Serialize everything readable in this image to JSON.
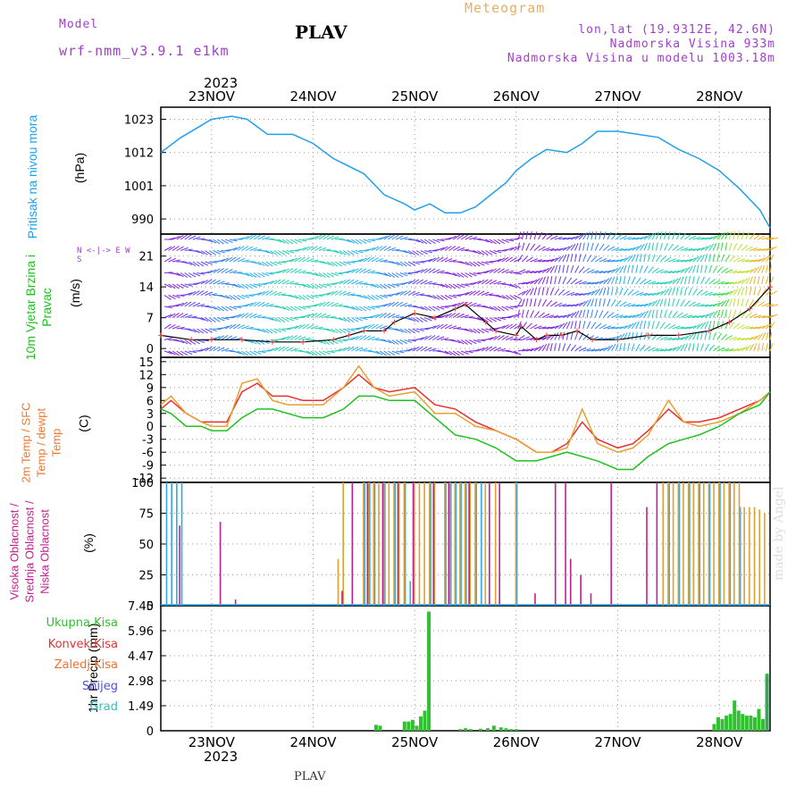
{
  "header": {
    "model_label": "Model",
    "model_name": "wrf-nmm_v3.9.1 e1km",
    "station": "PLAV",
    "meteogram": "Meteogram",
    "lonlat": "lon,lat (19.9312E, 42.6N)",
    "elevation": "Nadmorska Visina 933m",
    "model_elevation": "Nadmorska Visina u modelu 1003.18m"
  },
  "footer": {
    "station": "PLAV",
    "credit": "made by Angel"
  },
  "colors": {
    "pressure": "#22a0e8",
    "temp2m": "#e83030",
    "sfc": "#e8a030",
    "dew": "#20c020",
    "high": "#30a8e8",
    "mid": "#e0a030",
    "low": "#c02090",
    "precip": "#30c030"
  },
  "chart_data": [
    {
      "type": "line",
      "panel": "pressure",
      "x_ticks": [
        "23NOV",
        "24NOV",
        "25NOV",
        "26NOV",
        "27NOV",
        "28NOV"
      ],
      "year": "2023",
      "ylabel": "Pritisak na nivou mora",
      "unit": "(hPa)",
      "y_ticks": [
        990,
        1001,
        1012,
        1023
      ],
      "ylim": [
        985,
        1027
      ],
      "x": [
        -0.5,
        -0.3,
        -0.1,
        0.0,
        0.2,
        0.35,
        0.55,
        0.8,
        1.0,
        1.2,
        1.5,
        1.7,
        1.9,
        2.0,
        2.15,
        2.3,
        2.45,
        2.6,
        2.75,
        2.9,
        3.0,
        3.15,
        3.3,
        3.5,
        3.65,
        3.8,
        4.0,
        4.2,
        4.4,
        4.6,
        4.8,
        5.0,
        5.2,
        5.4,
        5.5
      ],
      "series": [
        {
          "values": [
            1012,
            1017,
            1021,
            1023,
            1024,
            1023,
            1018,
            1018,
            1015,
            1010,
            1005,
            998,
            995,
            993,
            995,
            992,
            992,
            994,
            998,
            1002,
            1006,
            1010,
            1013,
            1012,
            1015,
            1019,
            1019,
            1018,
            1017,
            1013,
            1010,
            1006,
            1000,
            993,
            987
          ]
        }
      ]
    },
    {
      "type": "line",
      "panel": "wind",
      "ylabel": "10m Vjetar Brzina i Pravac",
      "unit": "(m/s)",
      "compass": "N <-|-> E W S",
      "y_ticks": [
        0,
        7,
        14,
        21
      ],
      "ylim": [
        -2,
        26
      ],
      "x": [
        -0.5,
        -0.2,
        0.0,
        0.3,
        0.6,
        0.9,
        1.2,
        1.35,
        1.5,
        1.7,
        1.8,
        2.0,
        2.2,
        2.4,
        2.5,
        2.7,
        2.8,
        3.0,
        3.05,
        3.2,
        3.3,
        3.45,
        3.6,
        3.75,
        4.0,
        4.3,
        4.6,
        4.9,
        5.1,
        5.3,
        5.5
      ],
      "series": [
        {
          "name": "speed",
          "values": [
            3,
            2,
            2,
            2,
            1.5,
            1.5,
            2,
            3,
            4,
            4,
            6,
            8,
            7,
            9,
            10,
            6,
            4,
            3,
            5,
            2,
            3,
            3,
            4,
            2,
            2,
            3,
            3,
            4,
            6,
            9,
            14
          ]
        }
      ]
    },
    {
      "type": "line",
      "panel": "temperature",
      "ylabel": "2m Temp / SFC Temp / dewpt Temp",
      "unit": "(C)",
      "y_ticks": [
        -12,
        -9,
        -6,
        -3,
        0,
        3,
        6,
        9,
        12,
        15
      ],
      "ylim": [
        -13,
        16
      ],
      "x": [
        -0.5,
        -0.4,
        -0.25,
        -0.1,
        0.0,
        0.15,
        0.3,
        0.45,
        0.6,
        0.75,
        0.9,
        1.1,
        1.3,
        1.45,
        1.6,
        1.75,
        2.0,
        2.2,
        2.4,
        2.6,
        2.8,
        3.0,
        3.2,
        3.35,
        3.5,
        3.65,
        3.8,
        4.0,
        4.15,
        4.3,
        4.5,
        4.65,
        4.8,
        5.0,
        5.2,
        5.4,
        5.5
      ],
      "series": [
        {
          "name": "2m Temp",
          "values": [
            4,
            6,
            3,
            1,
            1,
            1,
            8,
            10,
            7,
            7,
            6,
            6,
            9,
            12,
            9,
            8,
            9,
            5,
            4,
            1,
            -1,
            -3,
            -6,
            -6,
            -4,
            1,
            -3,
            -5,
            -4,
            -1,
            4,
            1,
            1,
            2,
            4,
            6,
            8
          ]
        },
        {
          "name": "SFC Temp",
          "values": [
            5,
            7,
            3,
            1,
            0,
            0,
            10,
            11,
            6,
            5,
            5,
            5,
            9,
            14,
            9,
            7,
            8,
            3,
            3,
            0,
            -1,
            -3,
            -6,
            -6,
            -5,
            4,
            -4,
            -6,
            -5,
            -2,
            6,
            1,
            0,
            1,
            3,
            6,
            8
          ]
        },
        {
          "name": "dewpt Temp",
          "values": [
            4,
            3,
            0,
            0,
            -1,
            -1,
            2,
            4,
            4,
            3,
            2,
            2,
            4,
            7,
            7,
            6,
            6,
            2,
            -2,
            -3,
            -5,
            -8,
            -8,
            -7,
            -6,
            -7,
            -8,
            -10,
            -10,
            -7,
            -4,
            -3,
            -2,
            0,
            3,
            5,
            8
          ]
        }
      ]
    },
    {
      "type": "bar",
      "panel": "clouds",
      "ylabel": "Visoka Oblacnost / Srednja Oblacnost / Niska Oblacnost",
      "unit": "(%)",
      "y_ticks": [
        0,
        25,
        50,
        75,
        100
      ],
      "ylim": [
        0,
        100
      ],
      "series": [
        {
          "name": "Visoka Oblacnost",
          "x": [
            -0.45,
            -0.4,
            -0.35,
            -0.3,
            1.5,
            1.55,
            1.6,
            1.7,
            1.8,
            1.9,
            1.95,
            2.15,
            2.3,
            2.35,
            2.4,
            2.45,
            2.5,
            2.6,
            2.65,
            3.0,
            4.5,
            4.6,
            4.7,
            4.8,
            4.9,
            5.0,
            5.1,
            5.2
          ],
          "values": [
            100,
            100,
            100,
            100,
            100,
            100,
            100,
            100,
            100,
            100,
            20,
            100,
            100,
            100,
            100,
            100,
            100,
            100,
            100,
            100,
            100,
            100,
            100,
            100,
            100,
            100,
            100,
            80
          ]
        },
        {
          "name": "Srednja Oblacnost",
          "x": [
            1.25,
            1.3,
            1.5,
            1.55,
            1.6,
            1.65,
            1.7,
            1.75,
            1.8,
            1.85,
            1.9,
            2.0,
            2.05,
            2.1,
            2.15,
            2.2,
            2.3,
            2.35,
            2.4,
            2.45,
            2.5,
            2.55,
            2.6,
            2.7,
            2.8,
            3.0,
            4.45,
            4.5,
            4.55,
            4.6,
            4.65,
            4.7,
            4.75,
            4.8,
            4.85,
            4.9,
            4.95,
            5.0,
            5.05,
            5.1,
            5.15,
            5.2,
            5.25,
            5.3,
            5.35,
            5.4,
            5.45
          ],
          "values": [
            38,
            100,
            100,
            100,
            100,
            100,
            100,
            100,
            100,
            100,
            100,
            100,
            100,
            100,
            100,
            100,
            100,
            100,
            100,
            100,
            100,
            100,
            100,
            100,
            100,
            100,
            100,
            100,
            100,
            100,
            100,
            100,
            100,
            100,
            100,
            100,
            100,
            100,
            100,
            100,
            100,
            100,
            80,
            80,
            80,
            78,
            75
          ]
        },
        {
          "name": "Niska Oblacnost",
          "x": [
            -0.3,
            0.1,
            0.25,
            1.3,
            1.4,
            1.55,
            1.7,
            1.85,
            2.0,
            2.2,
            2.35,
            2.55,
            2.75,
            2.85,
            3.2,
            3.4,
            3.5,
            3.55,
            3.65,
            3.75,
            3.95,
            4.3,
            4.4
          ],
          "values": [
            65,
            68,
            5,
            12,
            100,
            100,
            100,
            100,
            100,
            100,
            100,
            100,
            100,
            100,
            10,
            100,
            100,
            38,
            25,
            10,
            100,
            80,
            100
          ]
        }
      ]
    },
    {
      "type": "bar",
      "panel": "precip",
      "ylabel": "1hr Precip",
      "unit": "(mm)",
      "y_ticks": [
        0,
        1.49,
        2.98,
        4.47,
        5.96,
        7.45
      ],
      "ylim": [
        0,
        7.45
      ],
      "legend": [
        "Ukupna Kisa",
        "Konvek.Kisa",
        "Zaledj.Kisa",
        "Snijeg",
        "Grad"
      ],
      "x_ticks": [
        "23NOV",
        "24NOV",
        "25NOV",
        "26NOV",
        "27NOV",
        "28NOV"
      ],
      "year": "2023",
      "series": [
        {
          "name": "Ukupna Kisa",
          "x": [
            1.62,
            1.66,
            1.9,
            1.94,
            1.98,
            2.02,
            2.06,
            2.1,
            2.14,
            2.45,
            2.5,
            2.55,
            2.65,
            2.72,
            2.78,
            2.85,
            2.9,
            2.95,
            3.0,
            4.95,
            4.99,
            5.03,
            5.07,
            5.11,
            5.15,
            5.19,
            5.23,
            5.27,
            5.31,
            5.35,
            5.39,
            5.43,
            5.47
          ],
          "values": [
            0.35,
            0.3,
            0.55,
            0.55,
            0.65,
            0.3,
            0.85,
            1.2,
            7.1,
            0.1,
            0.15,
            0.1,
            0.12,
            0.15,
            0.3,
            0.2,
            0.15,
            0.1,
            0.1,
            0.4,
            0.8,
            0.7,
            0.9,
            1.0,
            1.8,
            1.2,
            1.0,
            0.9,
            0.9,
            0.8,
            1.3,
            0.7,
            3.4
          ]
        },
        {
          "name": "Snijeg",
          "x": [
            5.47
          ],
          "values": [
            3.2
          ]
        }
      ]
    }
  ]
}
